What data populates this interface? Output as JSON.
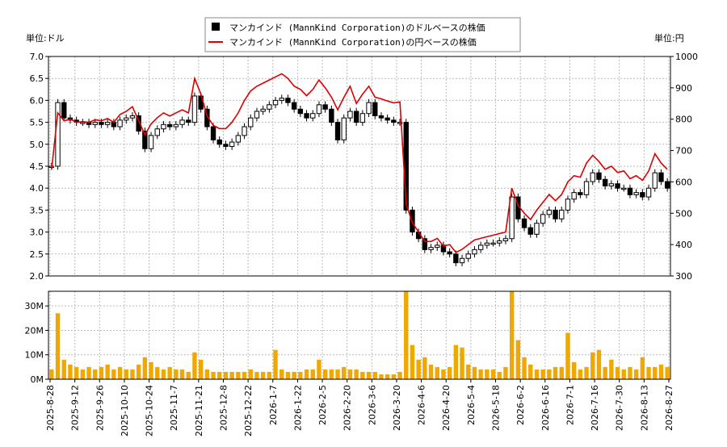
{
  "legend": {
    "usd_label": "マンカインド (MannKind Corporation)のドルベースの株価",
    "jpy_label": "マンカインド (MannKind Corporation)の円ベースの株価"
  },
  "axes": {
    "left_unit": "単位:ドル",
    "right_unit": "単位:円"
  },
  "colors": {
    "usd": "#000000",
    "jpy": "#dd0000",
    "volume": "#f0a800",
    "grid": "#bbbbbb"
  },
  "chart_data": [
    {
      "type": "line",
      "title": "",
      "series": [
        {
          "name": "マンカインド (MannKind Corporation)のドルベースの株価",
          "style": "candlestick",
          "values": [
            4.5,
            5.95,
            5.6,
            5.55,
            5.5,
            5.5,
            5.45,
            5.5,
            5.45,
            5.5,
            5.4,
            5.55,
            5.6,
            5.65,
            5.3,
            4.9,
            5.2,
            5.35,
            5.45,
            5.4,
            5.45,
            5.55,
            5.5,
            6.1,
            5.8,
            5.4,
            5.1,
            5.0,
            4.95,
            5.05,
            5.2,
            5.4,
            5.6,
            5.75,
            5.8,
            5.9,
            6.0,
            6.05,
            5.95,
            5.8,
            5.7,
            5.6,
            5.7,
            5.9,
            5.8,
            5.5,
            5.1,
            5.6,
            5.75,
            5.5,
            5.7,
            5.95,
            5.65,
            5.6,
            5.55,
            5.5,
            5.5,
            3.5,
            3.0,
            2.85,
            2.6,
            2.65,
            2.7,
            2.55,
            2.5,
            2.3,
            2.4,
            2.5,
            2.6,
            2.7,
            2.75,
            2.75,
            2.8,
            2.85,
            3.8,
            3.3,
            3.1,
            2.95,
            3.2,
            3.4,
            3.5,
            3.3,
            3.5,
            3.75,
            3.9,
            3.85,
            4.15,
            4.35,
            4.2,
            4.05,
            4.1,
            4.0,
            4.0,
            3.85,
            3.9,
            3.8,
            4.0,
            4.35,
            4.15,
            4.0
          ]
        },
        {
          "name": "マンカインド (MannKind Corporation)の円ベースの株価",
          "values": [
            640,
            820,
            795,
            800,
            790,
            792,
            790,
            798,
            795,
            802,
            790,
            815,
            825,
            840,
            795,
            750,
            785,
            805,
            820,
            810,
            820,
            830,
            820,
            930,
            880,
            810,
            780,
            770,
            770,
            790,
            820,
            860,
            890,
            905,
            915,
            925,
            935,
            945,
            930,
            905,
            895,
            875,
            895,
            925,
            900,
            870,
            830,
            870,
            905,
            850,
            880,
            905,
            870,
            865,
            858,
            852,
            855,
            530,
            470,
            440,
            410,
            410,
            420,
            395,
            400,
            375,
            385,
            400,
            415,
            420,
            425,
            430,
            435,
            440,
            580,
            525,
            500,
            480,
            510,
            535,
            560,
            540,
            560,
            600,
            620,
            615,
            660,
            685,
            665,
            640,
            650,
            630,
            635,
            610,
            620,
            605,
            635,
            690,
            660,
            640
          ]
        }
      ],
      "ylim": [
        2.0,
        7.0
      ],
      "yticks": [
        "2.0",
        "2.5",
        "3.0",
        "3.5",
        "4.0",
        "4.5",
        "5.0",
        "5.5",
        "6.0",
        "6.5",
        "7.0"
      ],
      "y2lim": [
        300,
        1000
      ],
      "y2ticks": [
        "300",
        "400",
        "500",
        "600",
        "700",
        "800",
        "900",
        "1000"
      ],
      "grid": true,
      "legend_position": "top-center"
    },
    {
      "type": "bar",
      "series": [
        {
          "name": "volume",
          "values": [
            4,
            27,
            8,
            6,
            5,
            4,
            5,
            4,
            5,
            6,
            4,
            5,
            4,
            4,
            6,
            9,
            7,
            5,
            4,
            5,
            4,
            4,
            3,
            11,
            8,
            4,
            3,
            3,
            3,
            3,
            3,
            3,
            4,
            3,
            3,
            3,
            12,
            4,
            3,
            3,
            3,
            4,
            4,
            8,
            4,
            4,
            4,
            5,
            4,
            4,
            3,
            3,
            3,
            2,
            2,
            2,
            3,
            36,
            14,
            8,
            9,
            6,
            5,
            4,
            5,
            14,
            13,
            6,
            5,
            4,
            4,
            4,
            3,
            5,
            36,
            16,
            9,
            6,
            4,
            4,
            4,
            5,
            5,
            19,
            7,
            4,
            5,
            11,
            12,
            5,
            8,
            5,
            4,
            5,
            4,
            9,
            5,
            5,
            6,
            5
          ]
        }
      ],
      "ylim": [
        0,
        36
      ],
      "yticks": [
        "0M",
        "10M",
        "20M",
        "30M"
      ],
      "x_tick_labels": [
        "2025-8-28",
        "2025-9-12",
        "2025-9-26",
        "2025-10-10",
        "2025-10-24",
        "2025-11-7",
        "2025-11-21",
        "2025-12-8",
        "2025-12-22",
        "2026-1-7",
        "2026-1-22",
        "2026-2-5",
        "2026-2-20",
        "2026-3-6",
        "2026-3-20",
        "2026-4-6",
        "2026-4-20",
        "2026-5-4",
        "2026-5-18",
        "2026-6-2",
        "2026-6-16",
        "2026-7-1",
        "2026-7-16",
        "2026-7-30",
        "2026-8-13",
        "2026-8-27"
      ]
    }
  ]
}
